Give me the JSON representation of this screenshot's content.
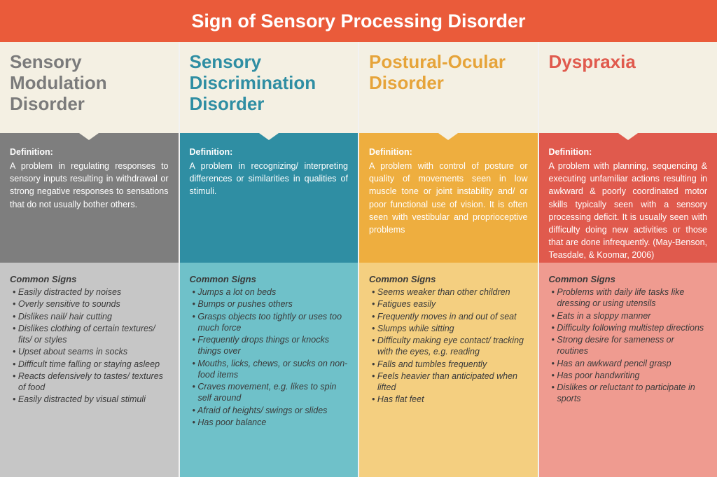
{
  "header": {
    "title": "Sign of Sensory Processing Disorder",
    "background_color": "#ea5b3a"
  },
  "def_label": "Definition:",
  "signs_label": "Common Signs",
  "columns": [
    {
      "title": "Sensory Modulation Disorder",
      "title_bg": "#f4f0e3",
      "title_color": "#7b7b7b",
      "def_bg": "#7e7e7e",
      "signs_bg": "#c6c6c6",
      "definition": "A problem in regulating responses to sensory inputs resulting in withdrawal or strong negative responses to sensations that do not usually bother others.",
      "signs": [
        "Easily distracted by noises",
        "Overly sensitive to sounds",
        "Dislikes nail/ hair cutting",
        "Dislikes clothing of certain textures/ fits/ or styles",
        "Upset about seams in socks",
        "Difficult time falling or staying asleep",
        "Reacts defensively to tastes/ textures of food",
        "Easily distracted by visual stimuli"
      ]
    },
    {
      "title": "Sensory Discrimination Disorder",
      "title_bg": "#f4f0e3",
      "title_color": "#2f8ea3",
      "def_bg": "#2f8ea3",
      "signs_bg": "#6fc1c9",
      "definition": "A problem in recognizing/ interpreting differences or similarities in qualities of stimuli.",
      "signs": [
        "Jumps a lot on beds",
        "Bumps or pushes others",
        "Grasps objects too tightly or uses too much force",
        "Frequently drops things or knocks things over",
        "Mouths, licks, chews, or sucks on non-food items",
        "Craves movement, e.g. likes to spin self around",
        "Afraid of heights/ swings or slides",
        "Has poor balance"
      ]
    },
    {
      "title": "Postural-Ocular Disorder",
      "title_bg": "#f4f0e3",
      "title_color": "#e6a43a",
      "def_bg": "#eeae3f",
      "signs_bg": "#f4cf80",
      "definition": "A problem with control of posture or quality of movements seen in low muscle tone or joint instability and/ or poor functional use of vision.  It is often seen with vestibular and proprioceptive problems",
      "signs": [
        "Seems weaker than other children",
        "Fatigues easily",
        "Frequently moves in and out of seat",
        "Slumps while sitting",
        "Difficulty making eye contact/ tracking with the eyes, e.g. reading",
        "Falls and tumbles frequently",
        "Feels heavier than anticipated when lifted",
        "Has flat feet"
      ]
    },
    {
      "title": "Dyspraxia",
      "title_bg": "#f4f0e3",
      "title_color": "#e05a4d",
      "def_bg": "#e05a4d",
      "signs_bg": "#ef9b90",
      "definition": "A problem with planning, sequencing & executing unfamiliar actions resulting in awkward & poorly coordinated motor skills typically seen with a sensory processing deficit. It is usually seen with difficulty doing new activities or those that are done infrequently. (May-Benson, Teasdale, & Koomar, 2006)",
      "signs": [
        "Problems with daily life tasks like dressing or using utensils",
        "Eats in a sloppy manner",
        "Difficulty following multistep directions",
        "Strong desire for sameness or routines",
        "Has an awkward pencil grasp",
        "Has poor handwriting",
        "Dislikes or reluctant to participate in sports"
      ]
    }
  ]
}
